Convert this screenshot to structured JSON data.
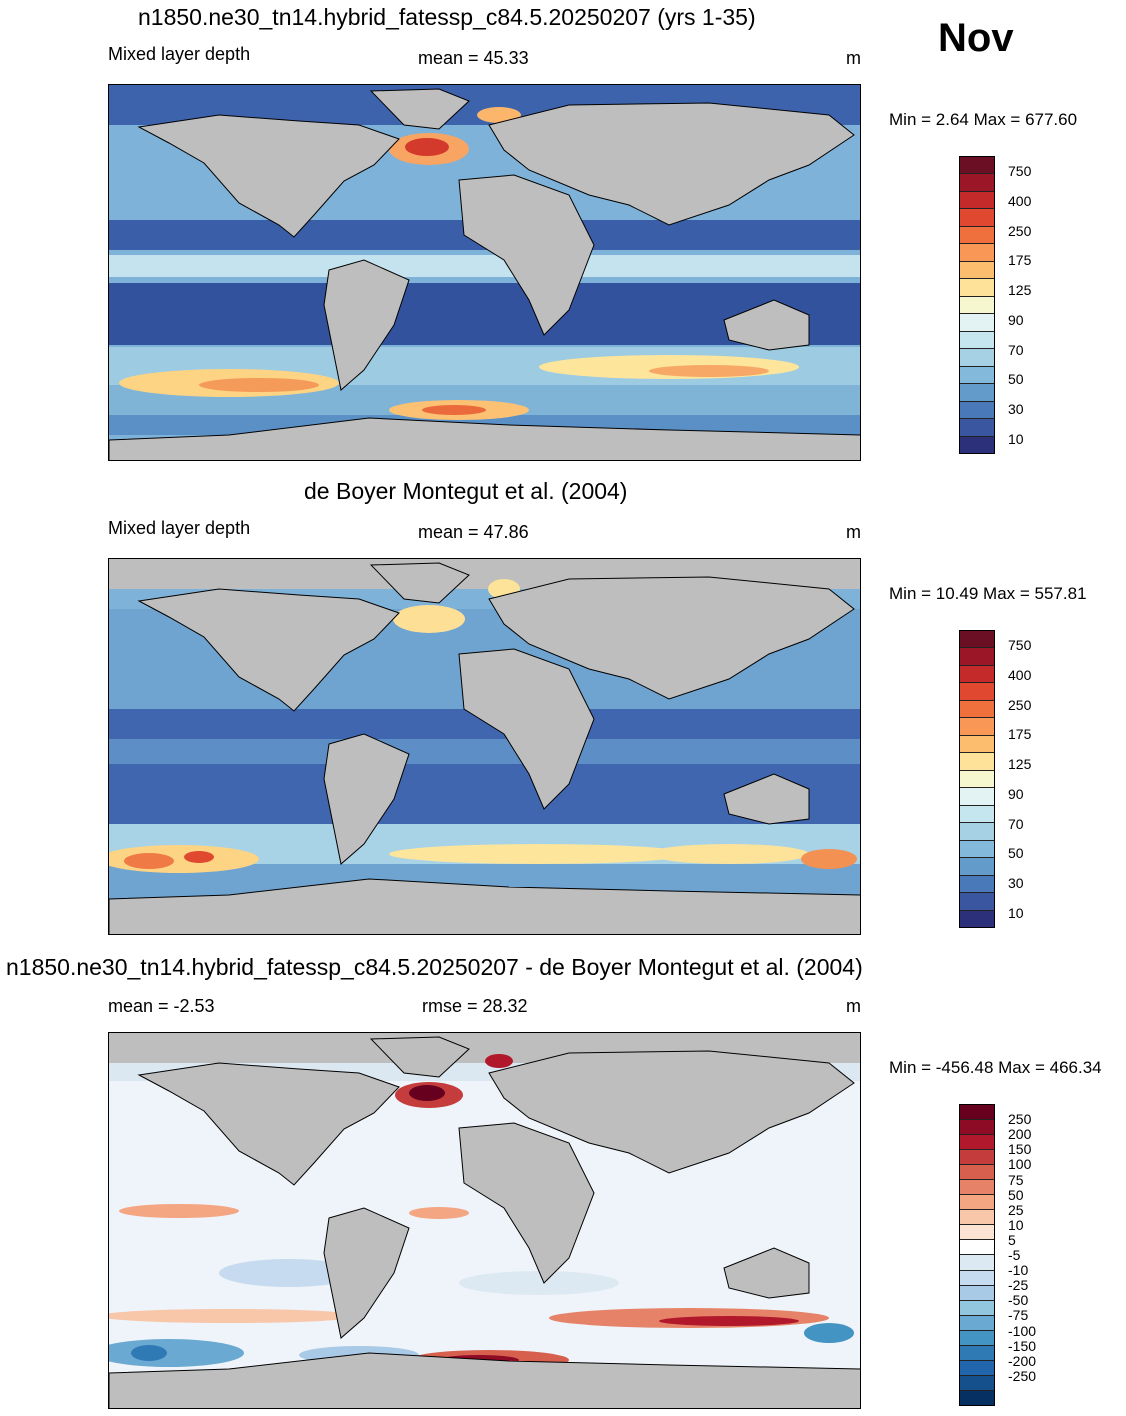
{
  "month": "Nov",
  "panels": [
    {
      "title": "n1850.ne30_tn14.hybrid_fatessp_c84.5.20250207 (yrs 1-35)",
      "left_label": "Mixed layer depth",
      "center_label": "mean =  45.33",
      "units": "m",
      "minmax": "Min =   2.64 Max = 677.60",
      "colorbar": {
        "colors": [
          "#6b0f24",
          "#9b1727",
          "#c42a2a",
          "#e0492f",
          "#f0703d",
          "#f99856",
          "#fdbd6e",
          "#fee29a",
          "#f6f6cf",
          "#e3f3f3",
          "#c6e6ef",
          "#a6d1e5",
          "#83b9da",
          "#639bcb",
          "#4a79b9",
          "#3a56a1",
          "#2c2f79"
        ],
        "ticks": [
          "750",
          "400",
          "250",
          "175",
          "125",
          "90",
          "70",
          "50",
          "30",
          "10"
        ]
      }
    },
    {
      "title": "de Boyer Montegut et al. (2004)",
      "left_label": "Mixed layer depth",
      "center_label": "mean =  47.86",
      "units": "m",
      "minmax": "Min =  10.49 Max = 557.81",
      "colorbar": {
        "colors": [
          "#6b0f24",
          "#9b1727",
          "#c42a2a",
          "#e0492f",
          "#f0703d",
          "#f99856",
          "#fdbd6e",
          "#fee29a",
          "#f6f6cf",
          "#e3f3f3",
          "#c6e6ef",
          "#a6d1e5",
          "#83b9da",
          "#639bcb",
          "#4a79b9",
          "#3a56a1",
          "#2c2f79"
        ],
        "ticks": [
          "750",
          "400",
          "250",
          "175",
          "125",
          "90",
          "70",
          "50",
          "30",
          "10"
        ]
      }
    },
    {
      "title": "n1850.ne30_tn14.hybrid_fatessp_c84.5.20250207 - de Boyer Montegut et al. (2004)",
      "left_label": "mean =  -2.53",
      "center_label": "rmse =  28.32",
      "units": "m",
      "minmax": "Min = -456.48 Max = 466.34",
      "colorbar": {
        "colors": [
          "#67001f",
          "#8e0b25",
          "#b2182b",
          "#c43c3c",
          "#d6604d",
          "#e58267",
          "#f4a582",
          "#f8c6a9",
          "#fbe3d4",
          "#ffffff",
          "#dde9f2",
          "#c6dbef",
          "#a9cae6",
          "#92c5de",
          "#6aa9d1",
          "#4393c3",
          "#2f79b5",
          "#2166ac",
          "#15508d",
          "#053061"
        ],
        "ticks": [
          "250",
          "200",
          "150",
          "100",
          "75",
          "50",
          "25",
          "10",
          "5",
          "-5",
          "-10",
          "-25",
          "-50",
          "-75",
          "-100",
          "-150",
          "-200",
          "-250"
        ]
      }
    }
  ]
}
